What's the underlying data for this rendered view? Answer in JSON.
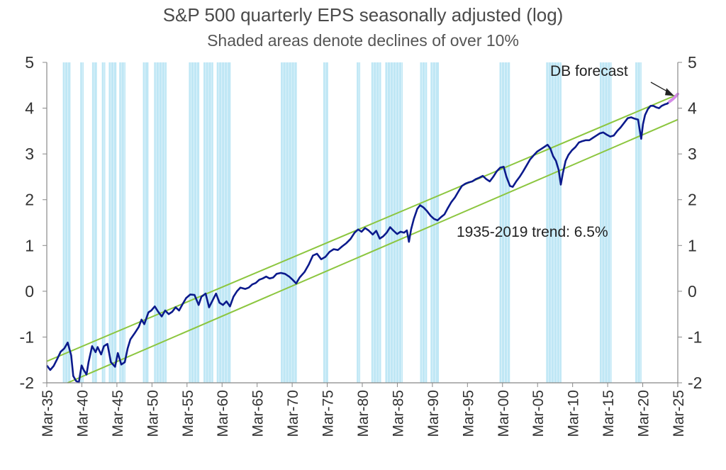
{
  "chart_data": {
    "type": "line",
    "title": "S&P 500 quarterly EPS seasonally adjusted (log)",
    "subtitle": "Shaded areas denote declines of over 10%",
    "xlabel": "",
    "ylabel": "",
    "ylim": [
      -2,
      5
    ],
    "yticks": [
      5,
      4,
      3,
      2,
      1,
      0,
      -1,
      -2
    ],
    "xticks": [
      "Mar-35",
      "Mar-40",
      "Mar-45",
      "Mar-50",
      "Mar-55",
      "Mar-60",
      "Mar-65",
      "Mar-70",
      "Mar-75",
      "Mar-80",
      "Mar-85",
      "Mar-90",
      "Mar-95",
      "Mar-00",
      "Mar-05",
      "Mar-10",
      "Mar-15",
      "Mar-20",
      "Mar-25"
    ],
    "xrange": [
      1935.0,
      2025.6
    ],
    "grid": false,
    "legend": "none",
    "colors": {
      "eps": "#0b1a8c",
      "forecast": "#d48be8",
      "trend": "#8cc63f",
      "shade": "#bfe7f5",
      "axis": "#888888"
    },
    "shaded_periods": [
      [
        1937.3,
        1938.4
      ],
      [
        1939.8,
        1940.3
      ],
      [
        1941.5,
        1942.2
      ],
      [
        1942.9,
        1943.4
      ],
      [
        1943.9,
        1945.0
      ],
      [
        1945.4,
        1946.3
      ],
      [
        1948.8,
        1949.6
      ],
      [
        1950.4,
        1952.2
      ],
      [
        1955.4,
        1956.9
      ],
      [
        1957.5,
        1958.9
      ],
      [
        1959.4,
        1961.4
      ],
      [
        1968.6,
        1970.9
      ],
      [
        1974.7,
        1975.4
      ],
      [
        1979.5,
        1980.0
      ],
      [
        1981.6,
        1983.0
      ],
      [
        1983.6,
        1986.1
      ],
      [
        1988.6,
        1989.6
      ],
      [
        1990.1,
        1991.3
      ],
      [
        2000.0,
        2001.5
      ],
      [
        2006.7,
        2008.9
      ],
      [
        2014.4,
        2016.1
      ],
      [
        2019.5,
        2020.4
      ]
    ],
    "trend_label": "1935-2019 trend: 6.5%",
    "forecast_label": "DB forecast",
    "trend_band": {
      "upper": [
        [
          1935.0,
          -1.53
        ],
        [
          2025.6,
          4.3
        ]
      ],
      "lower": [
        [
          1938.0,
          -2.0
        ],
        [
          2025.6,
          3.75
        ]
      ]
    },
    "series": [
      {
        "name": "EPS",
        "points": [
          [
            1935.0,
            -1.62
          ],
          [
            1935.5,
            -1.72
          ],
          [
            1936.0,
            -1.63
          ],
          [
            1936.5,
            -1.48
          ],
          [
            1937.0,
            -1.32
          ],
          [
            1937.5,
            -1.25
          ],
          [
            1938.0,
            -1.12
          ],
          [
            1938.5,
            -1.4
          ],
          [
            1938.8,
            -1.85
          ],
          [
            1939.2,
            -1.96
          ],
          [
            1939.6,
            -1.99
          ],
          [
            1940.0,
            -1.62
          ],
          [
            1940.3,
            -1.72
          ],
          [
            1940.7,
            -1.82
          ],
          [
            1941.0,
            -1.55
          ],
          [
            1941.5,
            -1.2
          ],
          [
            1942.0,
            -1.33
          ],
          [
            1942.3,
            -1.22
          ],
          [
            1942.8,
            -1.38
          ],
          [
            1943.2,
            -1.2
          ],
          [
            1943.7,
            -1.15
          ],
          [
            1944.2,
            -1.55
          ],
          [
            1944.8,
            -1.65
          ],
          [
            1945.2,
            -1.35
          ],
          [
            1945.7,
            -1.6
          ],
          [
            1946.2,
            -1.55
          ],
          [
            1946.6,
            -1.25
          ],
          [
            1947.0,
            -1.05
          ],
          [
            1947.6,
            -0.92
          ],
          [
            1948.2,
            -0.78
          ],
          [
            1948.6,
            -0.62
          ],
          [
            1949.0,
            -0.72
          ],
          [
            1949.6,
            -0.46
          ],
          [
            1950.0,
            -0.42
          ],
          [
            1950.5,
            -0.33
          ],
          [
            1951.0,
            -0.45
          ],
          [
            1951.5,
            -0.55
          ],
          [
            1952.0,
            -0.42
          ],
          [
            1952.5,
            -0.5
          ],
          [
            1953.0,
            -0.45
          ],
          [
            1953.5,
            -0.35
          ],
          [
            1954.0,
            -0.42
          ],
          [
            1954.5,
            -0.28
          ],
          [
            1955.0,
            -0.15
          ],
          [
            1955.6,
            -0.07
          ],
          [
            1956.2,
            -0.08
          ],
          [
            1956.8,
            -0.3
          ],
          [
            1957.2,
            -0.12
          ],
          [
            1957.8,
            -0.05
          ],
          [
            1958.3,
            -0.35
          ],
          [
            1958.8,
            -0.2
          ],
          [
            1959.3,
            -0.05
          ],
          [
            1959.8,
            -0.25
          ],
          [
            1960.3,
            -0.3
          ],
          [
            1960.8,
            -0.22
          ],
          [
            1961.3,
            -0.33
          ],
          [
            1961.8,
            -0.12
          ],
          [
            1962.3,
            0.0
          ],
          [
            1962.8,
            0.08
          ],
          [
            1963.5,
            0.05
          ],
          [
            1964.0,
            0.08
          ],
          [
            1964.5,
            0.15
          ],
          [
            1965.0,
            0.18
          ],
          [
            1965.5,
            0.25
          ],
          [
            1966.0,
            0.28
          ],
          [
            1966.5,
            0.32
          ],
          [
            1967.0,
            0.28
          ],
          [
            1967.5,
            0.3
          ],
          [
            1968.0,
            0.38
          ],
          [
            1968.6,
            0.4
          ],
          [
            1969.2,
            0.38
          ],
          [
            1969.8,
            0.32
          ],
          [
            1970.3,
            0.25
          ],
          [
            1970.8,
            0.17
          ],
          [
            1971.3,
            0.3
          ],
          [
            1972.0,
            0.42
          ],
          [
            1972.6,
            0.58
          ],
          [
            1973.2,
            0.78
          ],
          [
            1973.8,
            0.82
          ],
          [
            1974.4,
            0.7
          ],
          [
            1975.0,
            0.75
          ],
          [
            1975.6,
            0.86
          ],
          [
            1976.2,
            0.92
          ],
          [
            1976.8,
            0.9
          ],
          [
            1977.4,
            0.98
          ],
          [
            1978.0,
            1.05
          ],
          [
            1978.6,
            1.14
          ],
          [
            1979.2,
            1.28
          ],
          [
            1979.7,
            1.35
          ],
          [
            1980.2,
            1.3
          ],
          [
            1980.7,
            1.38
          ],
          [
            1981.2,
            1.33
          ],
          [
            1981.8,
            1.24
          ],
          [
            1982.3,
            1.32
          ],
          [
            1982.8,
            1.15
          ],
          [
            1983.3,
            1.2
          ],
          [
            1983.8,
            1.28
          ],
          [
            1984.3,
            1.4
          ],
          [
            1984.8,
            1.32
          ],
          [
            1985.3,
            1.25
          ],
          [
            1985.8,
            1.3
          ],
          [
            1986.3,
            1.28
          ],
          [
            1986.7,
            1.33
          ],
          [
            1987.0,
            1.08
          ],
          [
            1987.3,
            1.35
          ],
          [
            1987.7,
            1.58
          ],
          [
            1988.2,
            1.8
          ],
          [
            1988.6,
            1.88
          ],
          [
            1989.1,
            1.83
          ],
          [
            1989.6,
            1.75
          ],
          [
            1990.1,
            1.65
          ],
          [
            1990.6,
            1.58
          ],
          [
            1991.1,
            1.55
          ],
          [
            1991.6,
            1.62
          ],
          [
            1992.1,
            1.68
          ],
          [
            1992.6,
            1.82
          ],
          [
            1993.1,
            1.95
          ],
          [
            1993.6,
            2.05
          ],
          [
            1994.1,
            2.18
          ],
          [
            1994.6,
            2.3
          ],
          [
            1995.1,
            2.35
          ],
          [
            1995.6,
            2.38
          ],
          [
            1996.1,
            2.4
          ],
          [
            1996.6,
            2.45
          ],
          [
            1997.1,
            2.48
          ],
          [
            1997.6,
            2.52
          ],
          [
            1998.1,
            2.45
          ],
          [
            1998.6,
            2.4
          ],
          [
            1999.1,
            2.5
          ],
          [
            1999.6,
            2.62
          ],
          [
            2000.1,
            2.7
          ],
          [
            2000.6,
            2.72
          ],
          [
            2001.0,
            2.5
          ],
          [
            2001.5,
            2.3
          ],
          [
            2001.9,
            2.28
          ],
          [
            2002.4,
            2.4
          ],
          [
            2002.9,
            2.5
          ],
          [
            2003.4,
            2.62
          ],
          [
            2003.9,
            2.75
          ],
          [
            2004.4,
            2.88
          ],
          [
            2004.9,
            2.97
          ],
          [
            2005.4,
            3.05
          ],
          [
            2005.9,
            3.1
          ],
          [
            2006.4,
            3.15
          ],
          [
            2006.9,
            3.2
          ],
          [
            2007.3,
            3.12
          ],
          [
            2007.7,
            2.95
          ],
          [
            2008.1,
            2.85
          ],
          [
            2008.5,
            2.65
          ],
          [
            2008.8,
            2.33
          ],
          [
            2009.1,
            2.58
          ],
          [
            2009.5,
            2.85
          ],
          [
            2009.9,
            2.98
          ],
          [
            2010.4,
            3.08
          ],
          [
            2010.9,
            3.15
          ],
          [
            2011.4,
            3.25
          ],
          [
            2011.9,
            3.28
          ],
          [
            2012.4,
            3.3
          ],
          [
            2012.9,
            3.3
          ],
          [
            2013.4,
            3.35
          ],
          [
            2013.9,
            3.4
          ],
          [
            2014.4,
            3.45
          ],
          [
            2014.9,
            3.47
          ],
          [
            2015.4,
            3.42
          ],
          [
            2015.9,
            3.38
          ],
          [
            2016.4,
            3.4
          ],
          [
            2016.9,
            3.5
          ],
          [
            2017.4,
            3.58
          ],
          [
            2017.9,
            3.68
          ],
          [
            2018.4,
            3.78
          ],
          [
            2018.9,
            3.8
          ],
          [
            2019.4,
            3.77
          ],
          [
            2019.9,
            3.75
          ],
          [
            2020.1,
            3.55
          ],
          [
            2020.35,
            3.33
          ],
          [
            2020.6,
            3.65
          ],
          [
            2020.9,
            3.85
          ],
          [
            2021.3,
            3.98
          ],
          [
            2021.7,
            4.05
          ],
          [
            2022.1,
            4.05
          ],
          [
            2022.5,
            4.02
          ],
          [
            2022.9,
            4.0
          ],
          [
            2023.3,
            4.05
          ],
          [
            2023.7,
            4.08
          ],
          [
            2024.1,
            4.1
          ],
          [
            2024.4,
            4.14
          ]
        ]
      },
      {
        "name": "DB forecast",
        "points": [
          [
            2024.4,
            4.14
          ],
          [
            2024.9,
            4.2
          ],
          [
            2025.3,
            4.26
          ],
          [
            2025.6,
            4.31
          ]
        ]
      }
    ]
  }
}
